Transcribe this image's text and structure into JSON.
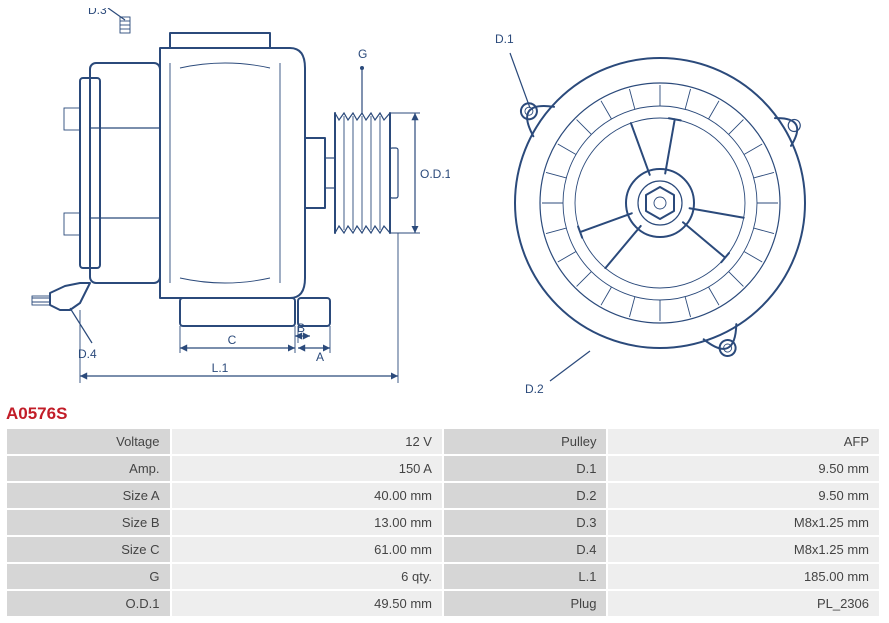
{
  "part_number": "A0576S",
  "colors": {
    "stroke": "#2b4a7b",
    "part_no": "#c21d28",
    "label_bg": "#d6d6d6",
    "value_bg": "#eeeeee",
    "row_border": "#ffffff",
    "text": "#444444",
    "page_bg": "#ffffff"
  },
  "diagram": {
    "type": "engineering-drawing",
    "views": {
      "side": {
        "callouts": [
          "D.3",
          "G",
          "O.D.1",
          "D.4",
          "C",
          "B",
          "A",
          "L.1"
        ]
      },
      "front": {
        "callouts": [
          "D.1",
          "D.2"
        ]
      }
    }
  },
  "specs": {
    "left": [
      {
        "label": "Voltage",
        "value": "12 V"
      },
      {
        "label": "Amp.",
        "value": "150 A"
      },
      {
        "label": "Size A",
        "value": "40.00 mm"
      },
      {
        "label": "Size B",
        "value": "13.00 mm"
      },
      {
        "label": "Size C",
        "value": "61.00 mm"
      },
      {
        "label": "G",
        "value": "6 qty."
      },
      {
        "label": "O.D.1",
        "value": "49.50 mm"
      }
    ],
    "right": [
      {
        "label": "Pulley",
        "value": "AFP"
      },
      {
        "label": "D.1",
        "value": "9.50 mm"
      },
      {
        "label": "D.2",
        "value": "9.50 mm"
      },
      {
        "label": "D.3",
        "value": "M8x1.25 mm"
      },
      {
        "label": "D.4",
        "value": "M8x1.25 mm"
      },
      {
        "label": "L.1",
        "value": "185.00 mm"
      },
      {
        "label": "Plug",
        "value": "PL_2306"
      }
    ]
  }
}
